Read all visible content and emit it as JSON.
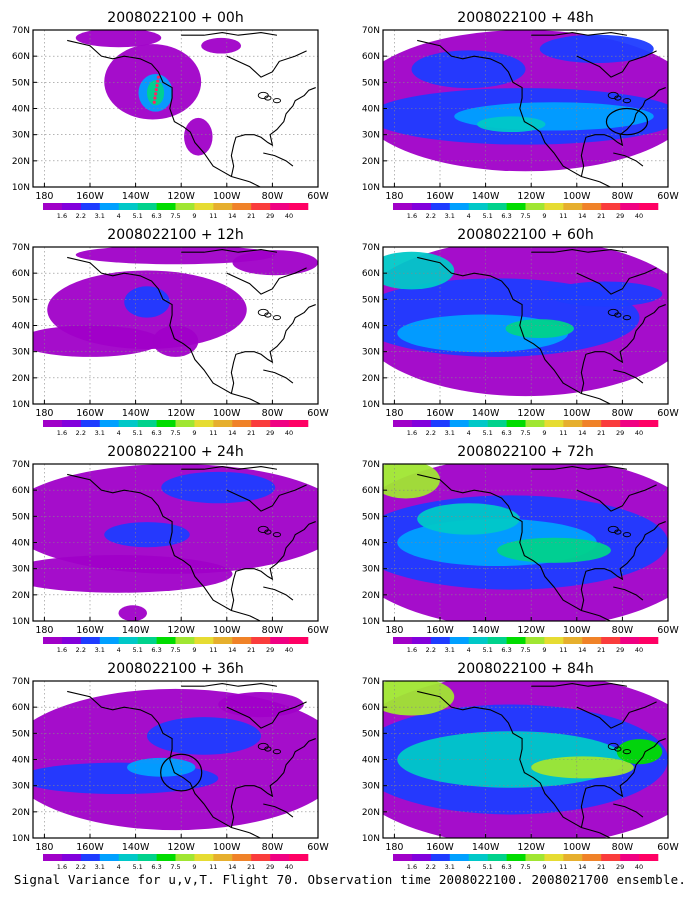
{
  "panels": [
    {
      "title": "2008022100 + 00h",
      "lead": "00h"
    },
    {
      "title": "2008022100 + 48h",
      "lead": "48h"
    },
    {
      "title": "2008022100 + 12h",
      "lead": "12h"
    },
    {
      "title": "2008022100 + 60h",
      "lead": "60h"
    },
    {
      "title": "2008022100 + 24h",
      "lead": "24h"
    },
    {
      "title": "2008022100 + 72h",
      "lead": "72h"
    },
    {
      "title": "2008022100 + 36h",
      "lead": "36h"
    },
    {
      "title": "2008022100 + 84h",
      "lead": "84h"
    }
  ],
  "axes": {
    "lat_labels": [
      "70N",
      "60N",
      "50N",
      "40N",
      "30N",
      "20N",
      "10N"
    ],
    "lon_labels": [
      "180",
      "160W",
      "140W",
      "120W",
      "100W",
      "80W",
      "60W"
    ]
  },
  "colorbar": {
    "labels": [
      "1.6",
      "2.2",
      "3.1",
      "4",
      "5.1",
      "6.3",
      "7.5",
      "9",
      "11",
      "14",
      "21",
      "29",
      "40"
    ],
    "colors": [
      "#a000c8",
      "#8200dc",
      "#1e3cff",
      "#00a0ff",
      "#00c8c8",
      "#00d28c",
      "#00dc00",
      "#a0e632",
      "#e6dc32",
      "#e6af2d",
      "#f08228",
      "#fa3c3c",
      "#f00082",
      "#ff0064"
    ]
  },
  "caption": "Signal Variance for u,v,T. Flight 70. Observation time 2008022100. 2008021700 ensemble."
}
